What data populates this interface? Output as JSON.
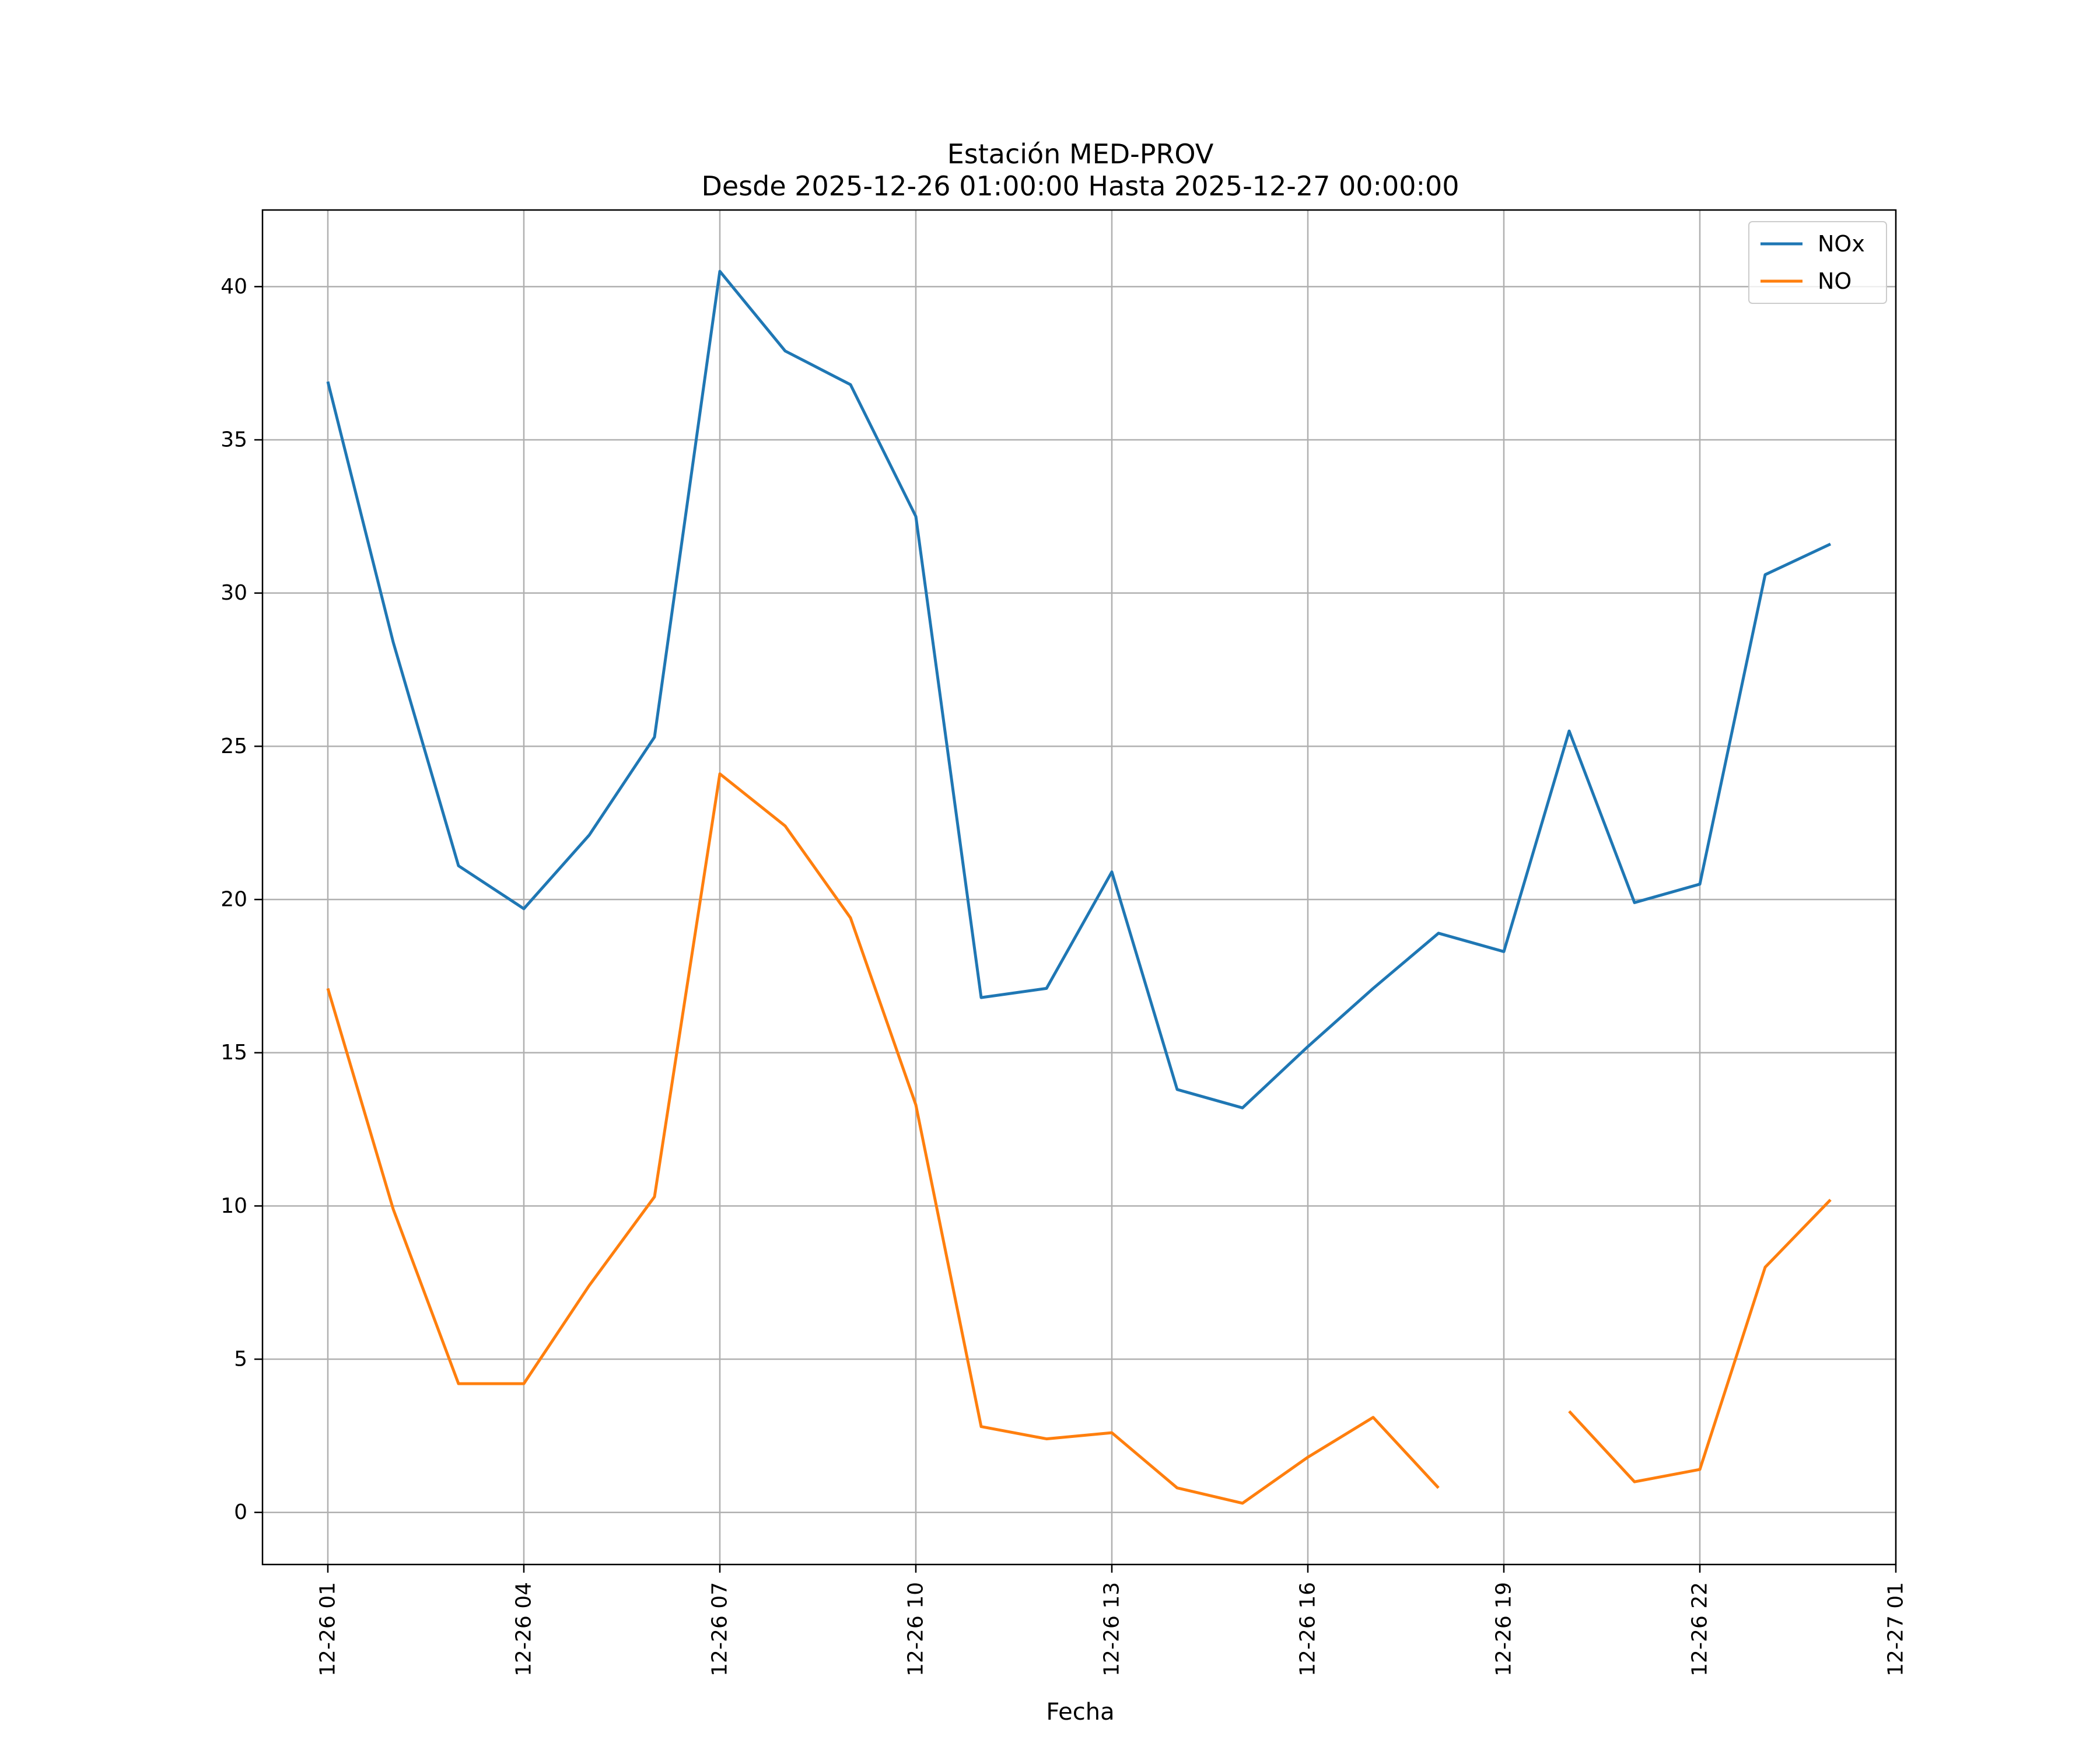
{
  "chart_data": {
    "type": "line",
    "title": "Estación MED-PROV",
    "subtitle": "Desde 2025-12-26 01:00:00 Hasta 2025-12-27 00:00:00",
    "xlabel": "Fecha",
    "ylabel": "",
    "x": [
      "2025-12-26 01:00",
      "2025-12-26 02:00",
      "2025-12-26 03:00",
      "2025-12-26 04:00",
      "2025-12-26 05:00",
      "2025-12-26 06:00",
      "2025-12-26 07:00",
      "2025-12-26 08:00",
      "2025-12-26 09:00",
      "2025-12-26 10:00",
      "2025-12-26 11:00",
      "2025-12-26 12:00",
      "2025-12-26 13:00",
      "2025-12-26 14:00",
      "2025-12-26 15:00",
      "2025-12-26 16:00",
      "2025-12-26 17:00",
      "2025-12-26 18:00",
      "2025-12-26 19:00",
      "2025-12-26 20:00",
      "2025-12-26 21:00",
      "2025-12-26 22:00",
      "2025-12-26 23:00",
      "2025-12-27 00:00"
    ],
    "x_tick_labels": [
      "12-26 01",
      "12-26 04",
      "12-26 07",
      "12-26 10",
      "12-26 13",
      "12-26 16",
      "12-26 19",
      "12-26 22",
      "12-27 01"
    ],
    "x_tick_values": [
      "2025-12-26 01:00",
      "2025-12-26 04:00",
      "2025-12-26 07:00",
      "2025-12-26 10:00",
      "2025-12-26 13:00",
      "2025-12-26 16:00",
      "2025-12-26 19:00",
      "2025-12-26 22:00",
      "2025-12-27 01:00"
    ],
    "xlim": [
      "2025-12-26 00:00",
      "2025-12-27 01:00"
    ],
    "y_ticks": [
      0,
      5,
      10,
      15,
      20,
      25,
      30,
      35,
      40
    ],
    "ylim": [
      -1.7,
      42.5
    ],
    "series": [
      {
        "name": "NOx",
        "color": "#1f77b4",
        "values": [
          36.9,
          28.4,
          21.1,
          19.7,
          22.1,
          25.3,
          40.5,
          37.9,
          36.8,
          32.5,
          16.8,
          17.1,
          20.9,
          13.8,
          13.2,
          15.2,
          17.1,
          18.9,
          18.3,
          25.5,
          19.9,
          20.5,
          30.6,
          31.6
        ]
      },
      {
        "name": "NO",
        "color": "#ff7f0e",
        "values": [
          17.1,
          9.9,
          4.2,
          4.2,
          7.4,
          10.3,
          24.1,
          22.4,
          19.4,
          13.3,
          2.8,
          2.4,
          2.6,
          0.8,
          0.3,
          1.8,
          3.1,
          0.8,
          null,
          3.3,
          1.0,
          1.4,
          8.0,
          10.2
        ]
      }
    ],
    "grid": true,
    "legend_position": "top-right"
  }
}
